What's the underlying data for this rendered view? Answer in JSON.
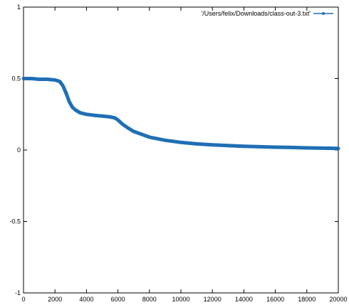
{
  "chart_data": {
    "type": "line",
    "title": "",
    "xlabel": "",
    "ylabel": "",
    "xlim": [
      0,
      20000
    ],
    "ylim": [
      -1,
      1
    ],
    "x_ticks": [
      0,
      2000,
      4000,
      6000,
      8000,
      10000,
      12000,
      14000,
      16000,
      18000,
      20000
    ],
    "x_tick_labels": [
      "0",
      "2000",
      "4000",
      "6000",
      "8000",
      "10000",
      "12000",
      "14000",
      "16000",
      "18000",
      "20000"
    ],
    "y_ticks": [
      -1,
      -0.5,
      0,
      0.5,
      1
    ],
    "y_tick_labels": [
      "-1",
      "-0.5",
      "0",
      "0.5",
      "1"
    ],
    "grid": false,
    "legend_position": "top-right",
    "series": [
      {
        "name": "'/Users/felix/Downloads/class-out-3.txt'",
        "color": "#1f6fb4",
        "x": [
          0,
          500,
          1000,
          1500,
          2000,
          2300,
          2500,
          2700,
          2900,
          3100,
          3300,
          3600,
          4000,
          4500,
          5000,
          5500,
          5800,
          6000,
          6300,
          6700,
          7000,
          7500,
          8000,
          9000,
          10000,
          11000,
          12000,
          13000,
          14000,
          15000,
          16000,
          17000,
          18000,
          19000,
          20000
        ],
        "y": [
          0.5,
          0.5,
          0.495,
          0.495,
          0.49,
          0.48,
          0.45,
          0.4,
          0.34,
          0.3,
          0.28,
          0.26,
          0.25,
          0.243,
          0.238,
          0.232,
          0.225,
          0.21,
          0.18,
          0.15,
          0.13,
          0.11,
          0.09,
          0.068,
          0.053,
          0.043,
          0.036,
          0.031,
          0.026,
          0.023,
          0.02,
          0.018,
          0.015,
          0.013,
          0.011
        ]
      }
    ]
  }
}
